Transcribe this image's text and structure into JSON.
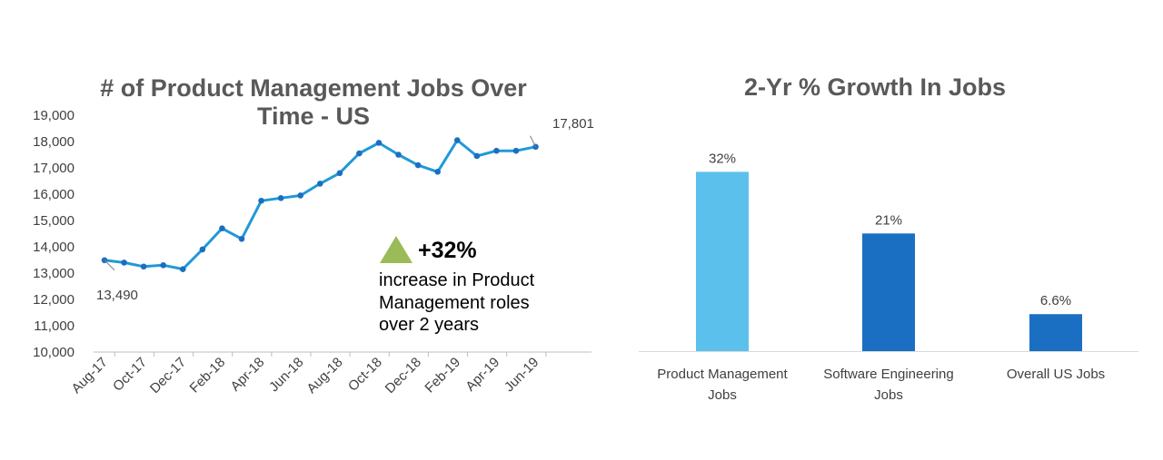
{
  "chart_data": [
    {
      "type": "line",
      "title_lines": [
        "# of Product Management Jobs Over",
        "Time - US"
      ],
      "x": [
        "Aug-17",
        "Sep-17",
        "Oct-17",
        "Nov-17",
        "Dec-17",
        "Jan-18",
        "Feb-18",
        "Mar-18",
        "Apr-18",
        "May-18",
        "Jun-18",
        "Jul-18",
        "Aug-18",
        "Sep-18",
        "Oct-18",
        "Nov-18",
        "Dec-18",
        "Jan-19",
        "Feb-19",
        "Mar-19",
        "Apr-19",
        "May-19",
        "Jun-19"
      ],
      "xtick_labels": [
        "Aug-17",
        "Oct-17",
        "Dec-17",
        "Feb-18",
        "Apr-18",
        "Jun-18",
        "Aug-18",
        "Oct-18",
        "Dec-18",
        "Feb-19",
        "Apr-19",
        "Jun-19"
      ],
      "series": [
        {
          "name": "PM Jobs",
          "color": "#1F9AD6",
          "values": [
            13490,
            13400,
            13250,
            13300,
            13150,
            13900,
            14700,
            14300,
            15750,
            15850,
            15950,
            16400,
            16800,
            17550,
            17950,
            17500,
            17100,
            16850,
            18050,
            17450,
            17650,
            17650,
            17801
          ]
        }
      ],
      "ylim": [
        10000,
        19000
      ],
      "yticks": [
        "10,000",
        "11,000",
        "12,000",
        "13,000",
        "14,000",
        "15,000",
        "16,000",
        "17,000",
        "18,000",
        "19,000"
      ],
      "ytick_values": [
        10000,
        11000,
        12000,
        13000,
        14000,
        15000,
        16000,
        17000,
        18000,
        19000
      ],
      "annotations": {
        "first": "13,490",
        "last": "17,801"
      },
      "callout": {
        "value": "+32%",
        "lines": [
          "increase in Product",
          "Management roles",
          "over 2 years"
        ],
        "color": "#9BBB59"
      }
    },
    {
      "type": "bar",
      "title": "2-Yr % Growth In Jobs",
      "categories": [
        [
          "Product Management",
          "Jobs"
        ],
        [
          "Software Engineering",
          "Jobs"
        ],
        [
          "Overall US Jobs"
        ]
      ],
      "values": [
        32,
        21,
        6.6
      ],
      "value_labels": [
        "32%",
        "21%",
        "6.6%"
      ],
      "colors": [
        "#5BC1EC",
        "#1B6FC2",
        "#1B6FC2"
      ],
      "ylim": [
        0,
        40
      ]
    }
  ]
}
